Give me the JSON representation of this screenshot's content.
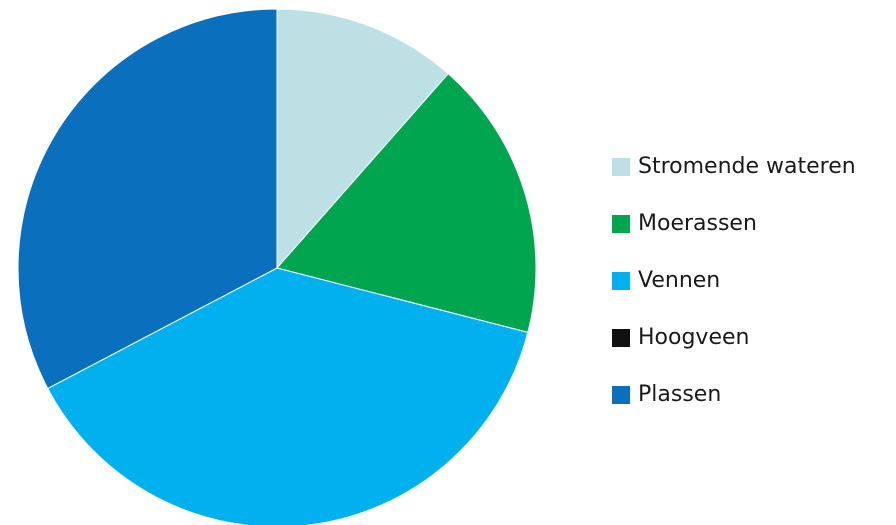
{
  "chart_data": {
    "type": "pie",
    "title": "",
    "legend_position": "right",
    "slices": [
      {
        "label": "Stromende wateren",
        "value": 11.5,
        "color": "#bde0e4"
      },
      {
        "label": "Moerassen",
        "value": 17.5,
        "color": "#00a550"
      },
      {
        "label": "Vennen",
        "value": 38.3,
        "color": "#00b0ef"
      },
      {
        "label": "Hoogveen",
        "value": 0,
        "color": "#111111"
      },
      {
        "label": "Plassen",
        "value": 32.7,
        "color": "#0a6fbd"
      }
    ]
  }
}
